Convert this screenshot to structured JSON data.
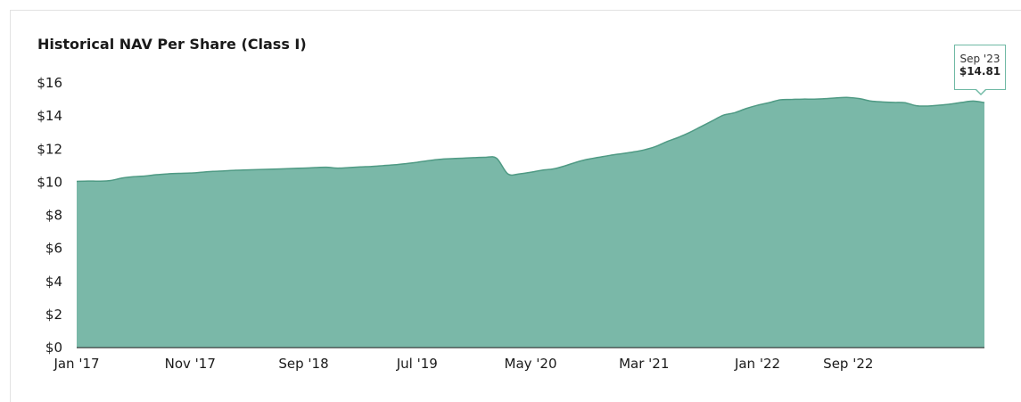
{
  "chart_data": {
    "type": "area",
    "title": "Historical NAV Per Share (Class I)",
    "xlabel": "",
    "ylabel": "",
    "ylim": [
      0,
      16
    ],
    "y_ticks": [
      "$0",
      "$2",
      "$4",
      "$6",
      "$8",
      "$10",
      "$12",
      "$14",
      "$16"
    ],
    "x_ticks": [
      "Jan '17",
      "Nov '17",
      "Sep '18",
      "Jul '19",
      "May '20",
      "Mar '21",
      "Jan '22",
      "Sep '22"
    ],
    "color": "#7ab8a8",
    "line_color": "#4f9a84",
    "series": [
      {
        "x": [
          "Jan '17",
          "Feb '17",
          "Mar '17",
          "Apr '17",
          "May '17",
          "Jun '17",
          "Jul '17",
          "Aug '17",
          "Sep '17",
          "Oct '17",
          "Nov '17",
          "Dec '17",
          "Jan '18",
          "Feb '18",
          "Mar '18",
          "Apr '18",
          "May '18",
          "Jun '18",
          "Jul '18",
          "Aug '18",
          "Sep '18",
          "Oct '18",
          "Nov '18",
          "Dec '18",
          "Jan '19",
          "Feb '19",
          "Mar '19",
          "Apr '19",
          "May '19",
          "Jun '19",
          "Jul '19",
          "Aug '19",
          "Sep '19",
          "Oct '19",
          "Nov '19",
          "Dec '19",
          "Jan '20",
          "Feb '20",
          "Mar '20",
          "Apr '20",
          "May '20",
          "Jun '20",
          "Jul '20",
          "Aug '20",
          "Sep '20",
          "Oct '20",
          "Nov '20",
          "Dec '20",
          "Jan '21",
          "Feb '21",
          "Mar '21",
          "Apr '21",
          "May '21",
          "Jun '21",
          "Jul '21",
          "Aug '21",
          "Sep '21",
          "Oct '21",
          "Nov '21",
          "Dec '21",
          "Jan '22",
          "Feb '22",
          "Mar '22",
          "Apr '22",
          "May '22",
          "Jun '22",
          "Jul '22",
          "Aug '22",
          "Sep '22",
          "Oct '22",
          "Nov '22",
          "Dec '22",
          "Jan '23",
          "Feb '23",
          "Mar '23",
          "Apr '23",
          "May '23",
          "Jun '23",
          "Jul '23",
          "Aug '23",
          "Sep '23"
        ],
        "values": [
          10.05,
          10.07,
          10.06,
          10.1,
          10.25,
          10.33,
          10.37,
          10.45,
          10.5,
          10.53,
          10.55,
          10.6,
          10.65,
          10.68,
          10.72,
          10.74,
          10.76,
          10.78,
          10.8,
          10.83,
          10.85,
          10.88,
          10.9,
          10.85,
          10.88,
          10.92,
          10.95,
          11.0,
          11.05,
          11.12,
          11.2,
          11.3,
          11.38,
          11.42,
          11.45,
          11.48,
          11.5,
          11.45,
          10.5,
          10.5,
          10.6,
          10.72,
          10.8,
          10.98,
          11.2,
          11.38,
          11.5,
          11.62,
          11.72,
          11.82,
          11.95,
          12.15,
          12.45,
          12.7,
          13.0,
          13.35,
          13.7,
          14.05,
          14.2,
          14.45,
          14.65,
          14.8,
          14.98,
          15.0,
          15.02,
          15.02,
          15.05,
          15.1,
          15.12,
          15.05,
          14.9,
          14.85,
          14.82,
          14.8,
          14.62,
          14.6,
          14.65,
          14.72,
          14.82,
          14.9,
          14.81
        ]
      }
    ],
    "tooltip": {
      "date": "Sep '23",
      "value": "$14.81"
    }
  }
}
